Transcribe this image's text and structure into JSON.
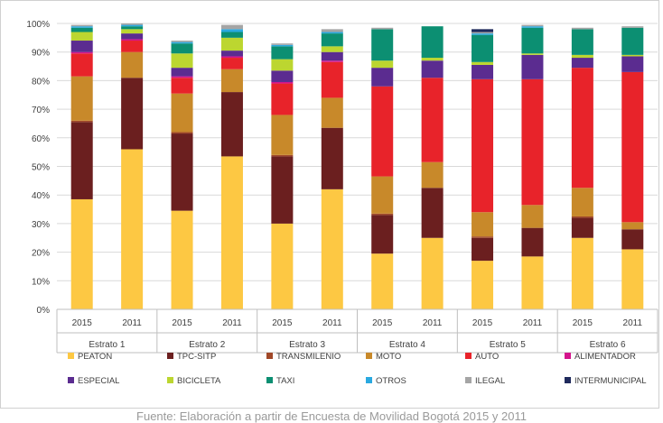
{
  "chart_data": {
    "type": "bar",
    "stacked": true,
    "title": "",
    "xlabel": "",
    "ylabel": "",
    "y_unit": "%",
    "ylim": [
      0,
      100
    ],
    "yticks": [
      "0%",
      "10%",
      "20%",
      "30%",
      "40%",
      "50%",
      "60%",
      "70%",
      "80%",
      "90%",
      "100%"
    ],
    "grid": true,
    "legend_position": "bottom",
    "groups": [
      {
        "name": "Estrato 1",
        "years": [
          "2015",
          "2011"
        ]
      },
      {
        "name": "Estrato 2",
        "years": [
          "2015",
          "2011"
        ]
      },
      {
        "name": "Estrato 3",
        "years": [
          "2015",
          "2011"
        ]
      },
      {
        "name": "Estrato 4",
        "years": [
          "2015",
          "2011"
        ]
      },
      {
        "name": "Estrato 5",
        "years": [
          "2015",
          "2011"
        ]
      },
      {
        "name": "Estrato 6",
        "years": [
          "2015",
          "2011"
        ]
      }
    ],
    "categories": [
      "Estrato 1 2015",
      "Estrato 1 2011",
      "Estrato 2 2015",
      "Estrato 2 2011",
      "Estrato 3 2015",
      "Estrato 3 2011",
      "Estrato 4 2015",
      "Estrato 4 2011",
      "Estrato 5 2015",
      "Estrato 5 2011",
      "Estrato 6 2015",
      "Estrato 6 2011"
    ],
    "series": [
      {
        "name": "PEATON",
        "color": "#fdc843",
        "values": [
          38.5,
          56,
          34.5,
          53.5,
          30,
          42,
          19.5,
          25,
          17,
          18.5,
          25,
          21
        ]
      },
      {
        "name": "TPC-SITP",
        "color": "#6b1f1f",
        "values": [
          27,
          25,
          27,
          22.5,
          23.5,
          21.5,
          13.5,
          17.5,
          8,
          10,
          7,
          7
        ]
      },
      {
        "name": "TRANSMILENIO",
        "color": "#a04828",
        "values": [
          0.5,
          0,
          0.5,
          0,
          0.5,
          0,
          0.5,
          0,
          0.5,
          0,
          0.5,
          0
        ]
      },
      {
        "name": "MOTO",
        "color": "#c8892a",
        "values": [
          15.5,
          9,
          13.5,
          8,
          14,
          10.5,
          13,
          9,
          8.5,
          8,
          10,
          2.5
        ]
      },
      {
        "name": "AUTO",
        "color": "#e8232a",
        "values": [
          8,
          4,
          5.5,
          4,
          11,
          12.5,
          31.5,
          29.5,
          46.5,
          44,
          42,
          52.5
        ]
      },
      {
        "name": "ALIMENTADOR",
        "color": "#d4148c",
        "values": [
          0.5,
          0.5,
          0.5,
          0.5,
          0.5,
          0.5,
          0,
          0,
          0,
          0,
          0,
          0
        ]
      },
      {
        "name": "ESPECIAL",
        "color": "#5b2c90",
        "values": [
          4,
          2,
          3,
          2,
          4,
          3,
          6.5,
          6,
          5,
          8.5,
          3.5,
          5.5
        ]
      },
      {
        "name": "BICICLETA",
        "color": "#bcd630",
        "values": [
          3,
          1.5,
          5,
          4.5,
          4,
          2,
          2.5,
          1,
          1,
          0.5,
          1,
          0.5
        ]
      },
      {
        "name": "TAXI",
        "color": "#0c8f72",
        "values": [
          1.5,
          1,
          3.5,
          2,
          4.5,
          4.5,
          11,
          11,
          9.5,
          9,
          9,
          9.5
        ]
      },
      {
        "name": "OTROS",
        "color": "#2aa9e0",
        "values": [
          0.5,
          0.5,
          0.5,
          1,
          0.5,
          0.5,
          0,
          0,
          0.5,
          0.5,
          0,
          0
        ]
      },
      {
        "name": "ILEGAL",
        "color": "#a5a5a5",
        "values": [
          0.5,
          0.5,
          0.5,
          1.5,
          0.5,
          1,
          0.5,
          0,
          0.5,
          0.5,
          0.5,
          0.5
        ]
      },
      {
        "name": "INTERMUNICIPAL",
        "color": "#1f2a5c",
        "values": [
          0,
          0,
          0,
          0,
          0,
          0,
          0,
          0,
          1,
          0,
          0,
          0
        ]
      }
    ]
  },
  "source_text": "Fuente: Elaboración a partir de Encuesta de Movilidad Bogotá 2015 y 2011"
}
